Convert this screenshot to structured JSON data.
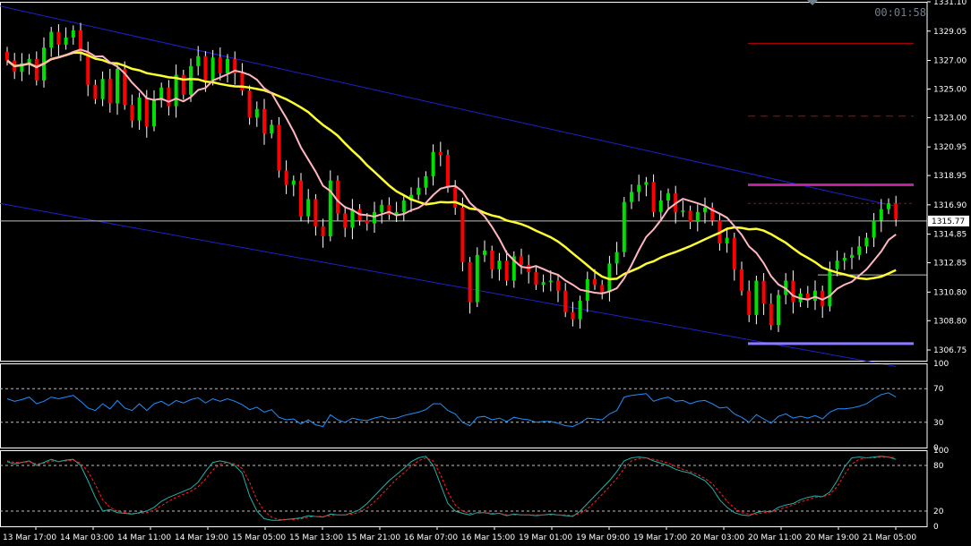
{
  "timer": "00:01:58",
  "current_price": "1315.77",
  "colors": {
    "background": "#000000",
    "frame": "#ffffff",
    "bull_candle": "#00e000",
    "bear_candle": "#ff0000",
    "wick": "#ffffff",
    "channel": "#1f1fd0",
    "ma_slow": "#ffff30",
    "ma_fast": "#ffb6c1",
    "rsi": "#1e90ff",
    "stoch_main": "#20b2aa",
    "stoch_signal": "#ff2020",
    "level_magenta": "#c020a0",
    "level_purple": "#8a7cff",
    "level_red": "#c00000",
    "hline": "#c0c0c0"
  },
  "chart_data": [
    {
      "type": "candlestick",
      "name": "price",
      "ylim": [
        1306.0,
        1331.1
      ],
      "y_ticks": [
        "1331.10",
        "1329.05",
        "1327.00",
        "1325.00",
        "1323.00",
        "1320.95",
        "1318.95",
        "1316.90",
        "1314.85",
        "1312.85",
        "1310.80",
        "1308.80",
        "1306.75"
      ],
      "x_ticks": [
        "13 Mar 17:00",
        "14 Mar 03:00",
        "14 Mar 11:00",
        "14 Mar 19:00",
        "15 Mar 05:00",
        "15 Mar 13:00",
        "15 Mar 21:00",
        "16 Mar 07:00",
        "16 Mar 15:00",
        "19 Mar 01:00",
        "19 Mar 09:00",
        "19 Mar 17:00",
        "20 Mar 03:00",
        "20 Mar 11:00",
        "20 Mar 19:00",
        "21 Mar 05:00"
      ],
      "closes": [
        1327.0,
        1326.2,
        1326.8,
        1327.1,
        1325.6,
        1327.9,
        1329.0,
        1328.1,
        1328.6,
        1329.1,
        1327.6,
        1325.3,
        1324.3,
        1325.7,
        1324.0,
        1326.4,
        1323.9,
        1322.8,
        1324.4,
        1322.4,
        1324.2,
        1325.1,
        1323.8,
        1326.0,
        1324.6,
        1326.6,
        1327.3,
        1325.6,
        1327.2,
        1326.1,
        1327.1,
        1326.1,
        1324.9,
        1323.0,
        1323.6,
        1321.9,
        1322.5,
        1319.3,
        1318.3,
        1318.6,
        1316.1,
        1317.3,
        1315.4,
        1314.7,
        1318.6,
        1316.3,
        1315.3,
        1316.6,
        1315.8,
        1315.6,
        1316.4,
        1316.9,
        1316.2,
        1316.4,
        1317.2,
        1317.6,
        1318.1,
        1318.9,
        1320.6,
        1320.4,
        1318.1,
        1316.7,
        1312.9,
        1310.1,
        1313.4,
        1313.7,
        1312.4,
        1313.0,
        1311.6,
        1313.3,
        1312.7,
        1312.2,
        1311.3,
        1311.5,
        1311.6,
        1310.9,
        1309.4,
        1308.9,
        1310.2,
        1311.7,
        1311.3,
        1310.8,
        1312.8,
        1313.6,
        1317.1,
        1317.8,
        1318.3,
        1318.5,
        1316.4,
        1317.2,
        1317.7,
        1316.4,
        1316.5,
        1315.7,
        1316.4,
        1316.7,
        1315.8,
        1314.2,
        1314.6,
        1312.4,
        1310.9,
        1309.2,
        1311.6,
        1310.0,
        1308.5,
        1310.6,
        1311.6,
        1310.1,
        1310.7,
        1310.2,
        1310.9,
        1309.8,
        1312.4,
        1313.0,
        1313.2,
        1313.4,
        1314.0,
        1314.6,
        1315.8,
        1316.6,
        1317.0,
        1315.9
      ],
      "current_price": 1315.77,
      "channel": {
        "upper": [
          [
            0,
            1330.8
          ],
          [
            121,
            1316.8
          ]
        ],
        "lower": [
          [
            0,
            1317.0
          ],
          [
            121,
            1305.6
          ]
        ]
      },
      "levels": [
        {
          "price": 1328.2,
          "style": "solid",
          "color": "level_red"
        },
        {
          "price": 1323.1,
          "style": "dashed",
          "color": "level_red"
        },
        {
          "price": 1318.3,
          "style": "solid",
          "color": "level_magenta"
        },
        {
          "price": 1317.0,
          "style": "dotted",
          "color": "level_red"
        },
        {
          "price": 1307.2,
          "style": "solid",
          "color": "level_purple"
        },
        {
          "price": 1312.0,
          "style": "thin",
          "color": "hline"
        }
      ],
      "ma_period_fast": 9,
      "ma_period_slow": 21
    },
    {
      "type": "line",
      "name": "oscillator-1",
      "ylim": [
        0,
        100
      ],
      "y_ticks": [
        "100",
        "70",
        "30",
        "0"
      ],
      "levels": [
        70,
        30
      ],
      "values": [
        58,
        55,
        57,
        60,
        52,
        55,
        60,
        58,
        60,
        62,
        55,
        47,
        44,
        52,
        46,
        56,
        47,
        44,
        52,
        44,
        52,
        55,
        50,
        56,
        53,
        57,
        59,
        53,
        58,
        55,
        58,
        55,
        51,
        45,
        48,
        42,
        45,
        36,
        33,
        34,
        28,
        33,
        27,
        25,
        39,
        33,
        30,
        35,
        33,
        32,
        35,
        37,
        34,
        35,
        38,
        40,
        42,
        45,
        52,
        52,
        44,
        40,
        30,
        26,
        36,
        37,
        33,
        35,
        31,
        36,
        34,
        33,
        30,
        31,
        31,
        29,
        26,
        25,
        29,
        35,
        34,
        33,
        40,
        44,
        60,
        62,
        63,
        64,
        55,
        58,
        60,
        55,
        56,
        52,
        55,
        56,
        52,
        47,
        48,
        40,
        36,
        30,
        39,
        34,
        29,
        37,
        40,
        35,
        37,
        35,
        38,
        34,
        42,
        46,
        46,
        47,
        49,
        52,
        58,
        63,
        65,
        60
      ]
    },
    {
      "type": "line",
      "name": "oscillator-2",
      "ylim": [
        0,
        100
      ],
      "y_ticks": [
        "100",
        "80",
        "20",
        "0"
      ],
      "levels": [
        80,
        20
      ],
      "main": [
        85,
        82,
        84,
        86,
        80,
        84,
        88,
        85,
        87,
        88,
        80,
        60,
        38,
        20,
        22,
        18,
        17,
        16,
        18,
        20,
        25,
        33,
        38,
        42,
        46,
        50,
        58,
        72,
        84,
        86,
        84,
        80,
        70,
        40,
        20,
        10,
        8,
        8,
        9,
        10,
        11,
        14,
        13,
        12,
        16,
        15,
        15,
        18,
        22,
        30,
        40,
        50,
        60,
        68,
        76,
        85,
        90,
        92,
        80,
        55,
        30,
        20,
        17,
        15,
        18,
        18,
        16,
        17,
        14,
        16,
        15,
        15,
        14,
        15,
        16,
        15,
        14,
        13,
        20,
        30,
        40,
        50,
        60,
        72,
        86,
        90,
        91,
        90,
        86,
        83,
        80,
        75,
        72,
        70,
        65,
        60,
        50,
        35,
        25,
        18,
        15,
        14,
        18,
        20,
        19,
        25,
        28,
        30,
        35,
        38,
        40,
        39,
        45,
        60,
        78,
        90,
        91,
        90,
        91,
        92,
        91,
        88
      ],
      "signal": [
        86,
        84,
        84,
        85,
        82,
        83,
        86,
        85,
        86,
        87,
        83,
        72,
        55,
        35,
        25,
        20,
        18,
        17,
        17,
        18,
        21,
        27,
        33,
        38,
        42,
        46,
        52,
        62,
        74,
        82,
        84,
        82,
        76,
        58,
        35,
        20,
        12,
        9,
        9,
        9,
        10,
        12,
        13,
        13,
        14,
        15,
        15,
        16,
        19,
        24,
        32,
        42,
        52,
        62,
        70,
        79,
        86,
        90,
        86,
        68,
        45,
        28,
        20,
        17,
        17,
        18,
        17,
        17,
        15,
        15,
        15,
        15,
        15,
        15,
        15,
        15,
        15,
        14,
        17,
        23,
        32,
        42,
        52,
        63,
        76,
        86,
        89,
        90,
        88,
        86,
        83,
        79,
        75,
        72,
        68,
        63,
        56,
        45,
        33,
        24,
        18,
        16,
        16,
        18,
        19,
        22,
        25,
        28,
        32,
        35,
        38,
        39,
        42,
        52,
        68,
        82,
        88,
        90,
        90,
        91,
        91,
        90
      ]
    }
  ]
}
